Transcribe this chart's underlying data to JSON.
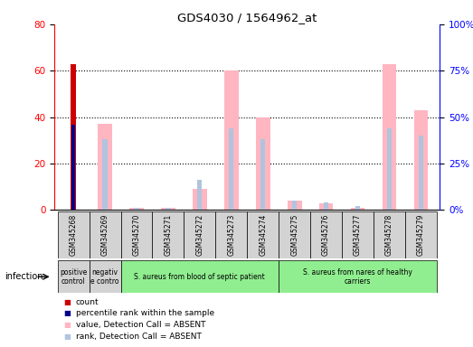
{
  "title": "GDS4030 / 1564962_at",
  "samples": [
    "GSM345268",
    "GSM345269",
    "GSM345270",
    "GSM345271",
    "GSM345272",
    "GSM345273",
    "GSM345274",
    "GSM345275",
    "GSM345276",
    "GSM345277",
    "GSM345278",
    "GSM345279"
  ],
  "count": [
    63,
    0,
    0,
    0,
    0,
    0,
    0,
    0,
    0,
    0,
    0,
    0
  ],
  "percentile_rank": [
    46,
    0,
    0,
    0,
    0,
    0,
    0,
    0,
    0,
    0,
    0,
    0
  ],
  "value_absent": [
    0,
    37,
    1,
    1,
    9,
    60,
    40,
    4,
    3,
    1,
    63,
    43
  ],
  "rank_absent": [
    0,
    38,
    1,
    1,
    16,
    44,
    38,
    5,
    4,
    2,
    44,
    40
  ],
  "ylim_left": [
    0,
    80
  ],
  "ylim_right": [
    0,
    100
  ],
  "yticks_left": [
    0,
    20,
    40,
    60,
    80
  ],
  "yticks_right": [
    0,
    25,
    50,
    75,
    100
  ],
  "count_color": "#cc0000",
  "rank_color": "#00008b",
  "value_absent_color": "#ffb6c1",
  "rank_absent_color": "#b0c4de",
  "group_defs": [
    {
      "start": 0,
      "end": 0,
      "color": "#d3d3d3",
      "label": "positive\ncontrol"
    },
    {
      "start": 1,
      "end": 1,
      "color": "#d3d3d3",
      "label": "negativ\ne contro"
    },
    {
      "start": 2,
      "end": 6,
      "color": "#90ee90",
      "label": "S. aureus from blood of septic patient"
    },
    {
      "start": 7,
      "end": 11,
      "color": "#90ee90",
      "label": "S. aureus from nares of healthy\ncarriers"
    }
  ],
  "infection_label": "infection",
  "legend": [
    {
      "label": "count",
      "color": "#cc0000"
    },
    {
      "label": "percentile rank within the sample",
      "color": "#00008b"
    },
    {
      "label": "value, Detection Call = ABSENT",
      "color": "#ffb6c1"
    },
    {
      "label": "rank, Detection Call = ABSENT",
      "color": "#b0c4de"
    }
  ]
}
